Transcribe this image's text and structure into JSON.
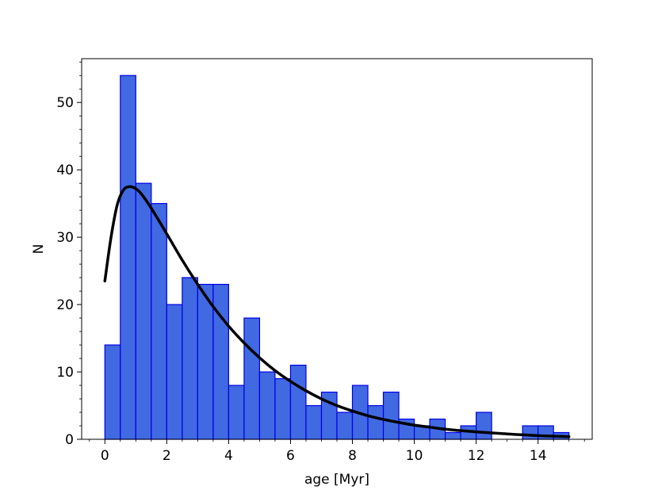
{
  "chart_data": {
    "type": "bar",
    "title": "",
    "xlabel": "age [Myr]",
    "ylabel": "N",
    "xlim": [
      -0.75,
      15.75
    ],
    "ylim": [
      0,
      56.5
    ],
    "bin_width": 0.5,
    "bins": [
      {
        "x0": 0.0,
        "value": 14
      },
      {
        "x0": 0.5,
        "value": 54
      },
      {
        "x0": 1.0,
        "value": 38
      },
      {
        "x0": 1.5,
        "value": 35
      },
      {
        "x0": 2.0,
        "value": 20
      },
      {
        "x0": 2.5,
        "value": 24
      },
      {
        "x0": 3.0,
        "value": 23
      },
      {
        "x0": 3.5,
        "value": 23
      },
      {
        "x0": 4.0,
        "value": 8
      },
      {
        "x0": 4.5,
        "value": 18
      },
      {
        "x0": 5.0,
        "value": 10
      },
      {
        "x0": 5.5,
        "value": 9
      },
      {
        "x0": 6.0,
        "value": 11
      },
      {
        "x0": 6.5,
        "value": 5
      },
      {
        "x0": 7.0,
        "value": 7
      },
      {
        "x0": 7.5,
        "value": 4
      },
      {
        "x0": 8.0,
        "value": 8
      },
      {
        "x0": 8.5,
        "value": 5
      },
      {
        "x0": 9.0,
        "value": 7
      },
      {
        "x0": 9.5,
        "value": 3
      },
      {
        "x0": 10.0,
        "value": 2
      },
      {
        "x0": 10.5,
        "value": 3
      },
      {
        "x0": 11.0,
        "value": 1
      },
      {
        "x0": 11.5,
        "value": 2
      },
      {
        "x0": 12.0,
        "value": 4
      },
      {
        "x0": 12.5,
        "value": 0
      },
      {
        "x0": 13.0,
        "value": 0
      },
      {
        "x0": 13.5,
        "value": 2
      },
      {
        "x0": 14.0,
        "value": 2
      },
      {
        "x0": 14.5,
        "value": 1
      }
    ],
    "fit_curve": {
      "name": "fit",
      "x": [
        0.0,
        0.2,
        0.4,
        0.6,
        0.8,
        1.0,
        1.2,
        1.5,
        2.0,
        2.5,
        3.0,
        3.5,
        4.0,
        4.5,
        5.0,
        5.5,
        6.0,
        6.5,
        7.0,
        7.5,
        8.0,
        8.5,
        9.0,
        9.5,
        10.0,
        10.5,
        11.0,
        12.0,
        13.0,
        14.0,
        15.0
      ],
      "y": [
        23.5,
        30.0,
        34.8,
        37.0,
        37.5,
        37.2,
        36.3,
        34.3,
        30.5,
        26.6,
        23.0,
        19.7,
        16.8,
        14.3,
        12.1,
        10.2,
        8.6,
        7.2,
        6.0,
        5.0,
        4.2,
        3.5,
        2.95,
        2.5,
        2.1,
        1.8,
        1.5,
        1.1,
        0.8,
        0.55,
        0.4
      ]
    },
    "x_ticks": [
      {
        "value": 0,
        "label": "0"
      },
      {
        "value": 2,
        "label": "2"
      },
      {
        "value": 4,
        "label": "4"
      },
      {
        "value": 6,
        "label": "6"
      },
      {
        "value": 8,
        "label": "8"
      },
      {
        "value": 10,
        "label": "10"
      },
      {
        "value": 12,
        "label": "12"
      },
      {
        "value": 14,
        "label": "14"
      }
    ],
    "y_ticks": [
      {
        "value": 0,
        "label": "0"
      },
      {
        "value": 10,
        "label": "10"
      },
      {
        "value": 20,
        "label": "20"
      },
      {
        "value": 30,
        "label": "30"
      },
      {
        "value": 40,
        "label": "40"
      },
      {
        "value": 50,
        "label": "50"
      }
    ],
    "x_minor_step": 0.5,
    "y_minor_step": 2,
    "grid": false,
    "colors": {
      "bar_fill": "#4169e1",
      "bar_edge": "#0000e6",
      "curve": "#000000",
      "axis": "#000000"
    }
  }
}
